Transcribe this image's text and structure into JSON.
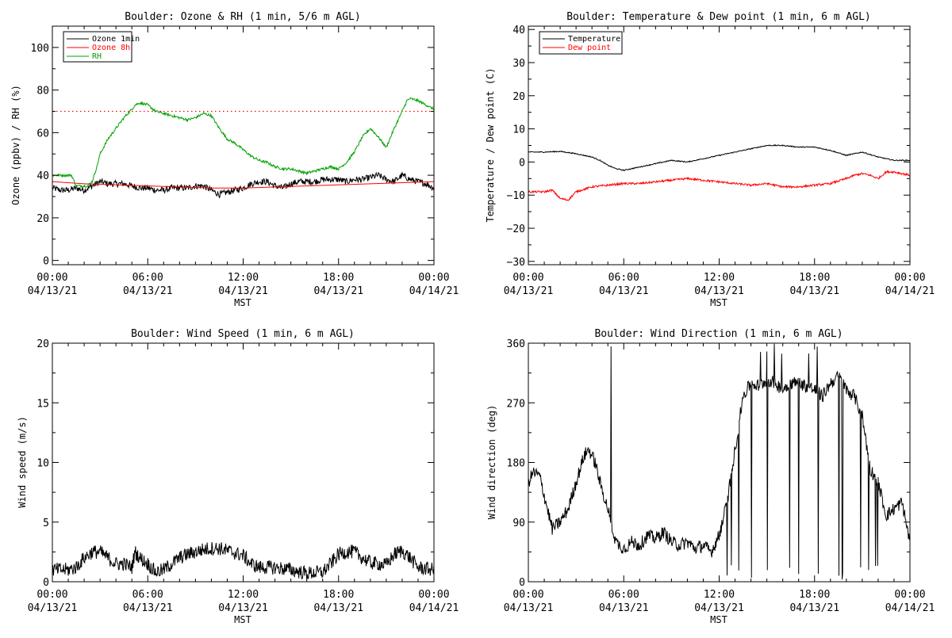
{
  "chart_data": [
    {
      "type": "line",
      "title": "Boulder: Ozone & RH (1 min, 5/6 m AGL)",
      "xlabel": "MST",
      "ylabel": "Ozone (ppbv) / RH (%)",
      "xlim": [
        0,
        24
      ],
      "ylim": [
        -2,
        110
      ],
      "x_ticks": [
        0,
        6,
        12,
        18,
        24
      ],
      "x_tick_labels": [
        [
          "00:00",
          "04/13/21"
        ],
        [
          "06:00",
          "04/13/21"
        ],
        [
          "12:00",
          "04/13/21"
        ],
        [
          "18:00",
          "04/13/21"
        ],
        [
          "00:00",
          "04/14/21"
        ]
      ],
      "y_ticks": [
        0,
        20,
        40,
        60,
        80,
        100
      ],
      "y_tick_labels": [
        "0",
        "20",
        "40",
        "60",
        "80",
        "100"
      ],
      "legend": [
        "Ozone 1min",
        "Ozone 8h",
        "RH"
      ],
      "legend_position": "top-left",
      "reference_line": {
        "y": 70,
        "style": "dotted",
        "color": "#ff0000"
      },
      "series": [
        {
          "name": "Ozone 1min",
          "color": "#000000",
          "noise": 1.5,
          "x": [
            0,
            0.5,
            1,
            1.5,
            2,
            2.5,
            3,
            3.5,
            4,
            4.5,
            5,
            5.5,
            6,
            6.5,
            7,
            7.5,
            8,
            8.5,
            9,
            9.5,
            10,
            10.5,
            11,
            11.5,
            12,
            12.5,
            13,
            13.5,
            14,
            14.5,
            15,
            15.5,
            16,
            16.5,
            17,
            17.5,
            18,
            18.5,
            19,
            19.5,
            20,
            20.5,
            21,
            21.5,
            22,
            22.5,
            23,
            23.5,
            24
          ],
          "y": [
            34,
            33,
            33,
            34,
            33,
            35,
            37,
            36,
            36,
            36,
            35,
            34,
            34,
            33,
            33,
            34,
            34,
            34,
            35,
            35,
            33,
            31,
            32,
            33,
            34,
            36,
            37,
            37,
            35,
            34,
            36,
            37,
            37,
            37,
            38,
            38,
            38,
            37,
            38,
            38,
            39,
            40,
            38,
            37,
            40,
            38,
            37,
            36,
            34
          ]
        },
        {
          "name": "Ozone 8h",
          "color": "#ff0000",
          "noise": 0,
          "x": [
            0,
            2,
            4,
            6,
            8,
            10,
            12,
            14,
            16,
            18,
            20,
            22,
            24
          ],
          "y": [
            37,
            36,
            35.5,
            35,
            34.5,
            34,
            34,
            34.5,
            35,
            35.5,
            36,
            36.5,
            37
          ]
        },
        {
          "name": "RH",
          "color": "#00a000",
          "noise": 0.6,
          "x": [
            0,
            0.5,
            1,
            1.2,
            1.5,
            2,
            2.2,
            2.5,
            2.8,
            3,
            3.5,
            4,
            4.5,
            5,
            5.2,
            5.5,
            6,
            6.5,
            7,
            7.5,
            8,
            8.5,
            9,
            9.5,
            10,
            10.5,
            11,
            11.5,
            12,
            12.5,
            13,
            13.5,
            14,
            14.5,
            15,
            15.5,
            16,
            16.5,
            17,
            17.5,
            18,
            18.5,
            19,
            19.5,
            20,
            20.5,
            21,
            21.5,
            22,
            22.3,
            22.5,
            23,
            23.5,
            24
          ],
          "y": [
            40,
            40,
            40,
            40,
            35,
            35,
            35,
            37,
            44,
            50,
            57,
            62,
            67,
            71,
            73,
            74,
            73,
            70,
            69,
            68,
            67,
            66,
            67,
            69,
            68,
            62,
            57,
            55,
            52,
            49,
            47,
            46,
            44,
            43,
            43,
            42,
            41,
            42,
            43,
            44,
            43,
            46,
            51,
            58,
            62,
            58,
            53,
            62,
            70,
            75,
            76,
            75,
            73,
            71
          ]
        }
      ]
    },
    {
      "type": "line",
      "title": "Boulder: Temperature & Dew point (1 min, 6 m AGL)",
      "xlabel": "MST",
      "ylabel": "Temperature / Dew point (C)",
      "xlim": [
        0,
        24
      ],
      "ylim": [
        -31,
        41
      ],
      "x_ticks": [
        0,
        6,
        12,
        18,
        24
      ],
      "x_tick_labels": [
        [
          "00:00",
          "04/13/21"
        ],
        [
          "06:00",
          "04/13/21"
        ],
        [
          "12:00",
          "04/13/21"
        ],
        [
          "18:00",
          "04/13/21"
        ],
        [
          "00:00",
          "04/14/21"
        ]
      ],
      "y_ticks": [
        -30,
        -20,
        -10,
        0,
        10,
        20,
        30,
        40
      ],
      "y_tick_labels": [
        "−30",
        "−20",
        "−10",
        "0",
        "10",
        "20",
        "30",
        "40"
      ],
      "legend": [
        "Temperature",
        "Dew point"
      ],
      "legend_position": "top-left",
      "series": [
        {
          "name": "Temperature",
          "color": "#000000",
          "noise": 0.15,
          "x": [
            0,
            1,
            2,
            3,
            4,
            4.5,
            5,
            5.5,
            6,
            6.5,
            7,
            8,
            9,
            10,
            11,
            12,
            13,
            14,
            15,
            16,
            17,
            18,
            19,
            20,
            21,
            22,
            23,
            24
          ],
          "y": [
            3,
            3,
            3.2,
            2.5,
            1.5,
            0.5,
            -1,
            -2,
            -2.5,
            -2,
            -1.5,
            -0.5,
            0.5,
            0,
            1,
            2,
            3,
            4,
            5,
            5,
            4.5,
            4.5,
            3.5,
            2,
            3,
            1.5,
            0.5,
            0.5
          ]
        },
        {
          "name": "Dew point",
          "color": "#ff0000",
          "noise": 0.3,
          "x": [
            0,
            0.5,
            1,
            1.5,
            2,
            2.5,
            3,
            4,
            5,
            6,
            7,
            8,
            9,
            10,
            11,
            12,
            13,
            14,
            15,
            16,
            17,
            18,
            19,
            20,
            20.5,
            21,
            21.5,
            22,
            22.5,
            23,
            23.5,
            24
          ],
          "y": [
            -9,
            -9,
            -9,
            -8.5,
            -11,
            -11.5,
            -9,
            -7.5,
            -7,
            -6.5,
            -6.5,
            -6,
            -5.5,
            -5,
            -5.5,
            -6,
            -6.5,
            -7,
            -6.5,
            -7.5,
            -7.5,
            -7,
            -6.5,
            -5,
            -4,
            -3.5,
            -4,
            -5,
            -3,
            -3,
            -3.5,
            -4
          ]
        }
      ]
    },
    {
      "type": "line",
      "title": "Boulder: Wind Speed (1 min, 6 m AGL)",
      "xlabel": "MST",
      "ylabel": "Wind speed (m/s)",
      "xlim": [
        0,
        24
      ],
      "ylim": [
        0,
        20
      ],
      "x_ticks": [
        0,
        6,
        12,
        18,
        24
      ],
      "x_tick_labels": [
        [
          "00:00",
          "04/13/21"
        ],
        [
          "06:00",
          "04/13/21"
        ],
        [
          "12:00",
          "04/13/21"
        ],
        [
          "18:00",
          "04/13/21"
        ],
        [
          "00:00",
          "04/14/21"
        ]
      ],
      "y_ticks": [
        0,
        5,
        10,
        15,
        20
      ],
      "y_tick_labels": [
        "0",
        "5",
        "10",
        "15",
        "20"
      ],
      "series": [
        {
          "name": "Wind speed",
          "color": "#000000",
          "noise": 0.6,
          "x": [
            0,
            1,
            1.5,
            2,
            2.5,
            3,
            3.5,
            4,
            4.5,
            5,
            5.2,
            5.5,
            6,
            6.5,
            7,
            7.5,
            8,
            8.5,
            9,
            9.5,
            10,
            10.5,
            11,
            11.5,
            12,
            12.5,
            13,
            14,
            15,
            16,
            17,
            17.5,
            18,
            18.5,
            19,
            19.5,
            20,
            20.5,
            21,
            21.5,
            22,
            22.5,
            23,
            24
          ],
          "y": [
            1,
            1,
            1.2,
            2,
            2.5,
            2.5,
            2,
            1.5,
            1.5,
            1.2,
            2.5,
            2,
            1.5,
            0.8,
            1,
            1.5,
            2,
            2.3,
            2.5,
            2.7,
            2.8,
            2.8,
            2.6,
            2.4,
            2.2,
            1.5,
            1.2,
            1.2,
            1,
            0.7,
            0.8,
            1.5,
            2.3,
            2.5,
            2.5,
            2,
            1.6,
            1.5,
            1.4,
            2.3,
            2.6,
            2,
            1.2,
            1
          ]
        }
      ]
    },
    {
      "type": "line",
      "title": "Boulder: Wind Direction (1 min, 6 m AGL)",
      "xlabel": "MST",
      "ylabel": "Wind direction (deg)",
      "xlim": [
        0,
        24
      ],
      "ylim": [
        0,
        360
      ],
      "x_ticks": [
        0,
        6,
        12,
        18,
        24
      ],
      "x_tick_labels": [
        [
          "00:00",
          "04/13/21"
        ],
        [
          "06:00",
          "04/13/21"
        ],
        [
          "12:00",
          "04/13/21"
        ],
        [
          "18:00",
          "04/13/21"
        ],
        [
          "00:00",
          "04/14/21"
        ]
      ],
      "y_ticks": [
        0,
        90,
        180,
        270,
        360
      ],
      "y_tick_labels": [
        "0",
        "90",
        "180",
        "270",
        "360"
      ],
      "series": [
        {
          "name": "Wind direction",
          "color": "#000000",
          "noise": 10,
          "wrap": [
            0,
            360
          ],
          "x": [
            0,
            0.3,
            0.7,
            1,
            1.5,
            2,
            2.5,
            3,
            3.5,
            3.8,
            4.2,
            4.5,
            5,
            5.5,
            6,
            6.5,
            7,
            7.5,
            8,
            8.5,
            9,
            9.5,
            10,
            10.5,
            11,
            11.5,
            12,
            12.5,
            13,
            13.5,
            14,
            14.5,
            15,
            15.5,
            16,
            16.5,
            17,
            17.5,
            18,
            18.5,
            19,
            19.5,
            20,
            20.5,
            21,
            21.5,
            22,
            22.5,
            23,
            23.5,
            24
          ],
          "y": [
            150,
            165,
            160,
            130,
            80,
            90,
            110,
            150,
            190,
            200,
            180,
            150,
            110,
            60,
            50,
            60,
            55,
            70,
            65,
            75,
            60,
            55,
            60,
            50,
            55,
            45,
            70,
            120,
            200,
            280,
            300,
            295,
            305,
            300,
            290,
            300,
            300,
            295,
            290,
            280,
            300,
            310,
            290,
            280,
            250,
            170,
            150,
            100,
            110,
            120,
            60
          ]
        }
      ]
    }
  ]
}
